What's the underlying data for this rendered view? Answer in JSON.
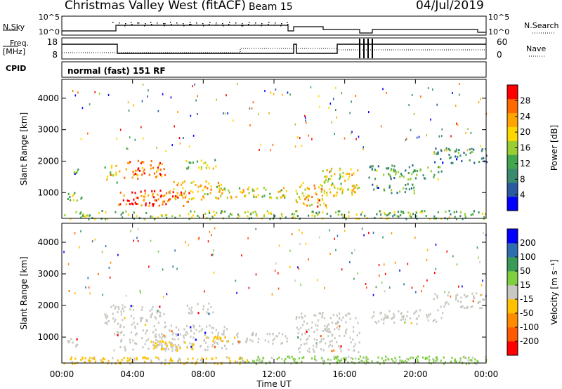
{
  "header": {
    "station": "Christmas Valley West (fitACF)",
    "beam": "Beam 15",
    "date": "04/Jul/2019"
  },
  "top_panels": {
    "nsky_label": "N.Sky",
    "nsky_ticks": [
      "10^5",
      "10^0"
    ],
    "nsearch_label": "N.Search",
    "nsearch_ticks": [
      "10^5",
      "10^0"
    ],
    "freq_label": "Freq.",
    "freq_unit": "[MHz]",
    "freq_ticks": [
      "18",
      "8"
    ],
    "nave_label": "Nave",
    "nave_ticks": [
      "60",
      "0"
    ],
    "cpid_label": "CPID",
    "cpid_text": "normal (fast) 151 RF"
  },
  "colors": {
    "power_scale": [
      "#0000ff",
      "#2a5aa0",
      "#3a8a6e",
      "#43a54e",
      "#9acd32",
      "#ffd700",
      "#ffa500",
      "#ff6a00",
      "#ff0000"
    ],
    "velocity_scale": [
      "#ff0000",
      "#ff5a00",
      "#ff8c00",
      "#ffc000",
      "#c8c8c0",
      "#7fcf3f",
      "#3a9a58",
      "#2e6db0",
      "#0000ff"
    ],
    "ground_scatter": "#c8c8c0"
  },
  "chart_data": [
    {
      "type": "heatmap",
      "title": "Power",
      "xlabel": "",
      "ylabel": "Slant Range [km]",
      "x_range_hours": [
        0,
        24
      ],
      "x_ticks": [
        "00:00",
        "04:00",
        "08:00",
        "12:00",
        "16:00",
        "20:00",
        "00:00"
      ],
      "y_range_km": [
        180,
        4600
      ],
      "y_ticks": [
        1000,
        2000,
        3000,
        4000
      ],
      "colorbar": {
        "label": "Power [dB]",
        "ticks": [
          "4",
          "8",
          "12",
          "16",
          "20",
          "24",
          "28"
        ],
        "range": [
          0,
          30
        ]
      },
      "regions": [
        {
          "t0": 0.3,
          "t1": 1.1,
          "r0": 700,
          "r1": 1100,
          "level": 0.45
        },
        {
          "t0": 0.3,
          "t1": 1.0,
          "r0": 1550,
          "r1": 1800,
          "level": 0.3
        },
        {
          "t0": 2.4,
          "t1": 3.3,
          "r0": 1350,
          "r1": 1900,
          "level": 0.6
        },
        {
          "t0": 2.9,
          "t1": 7.2,
          "r0": 600,
          "r1": 1100,
          "level": 0.9
        },
        {
          "t0": 3.5,
          "t1": 5.8,
          "r0": 1450,
          "r1": 2050,
          "level": 0.8
        },
        {
          "t0": 6.0,
          "t1": 9.5,
          "r0": 800,
          "r1": 1400,
          "level": 0.65
        },
        {
          "t0": 7.0,
          "t1": 8.7,
          "r0": 1750,
          "r1": 2100,
          "level": 0.5
        },
        {
          "t0": 9.5,
          "t1": 12.7,
          "r0": 800,
          "r1": 1200,
          "level": 0.55
        },
        {
          "t0": 13.2,
          "t1": 15.0,
          "r0": 550,
          "r1": 1350,
          "level": 0.7
        },
        {
          "t0": 14.5,
          "t1": 16.8,
          "r0": 850,
          "r1": 1800,
          "level": 0.62
        },
        {
          "t0": 17.3,
          "t1": 21.5,
          "r0": 1450,
          "r1": 1900,
          "level": 0.35
        },
        {
          "t0": 17.5,
          "t1": 20.0,
          "r0": 1000,
          "r1": 1300,
          "level": 0.3
        },
        {
          "t0": 21.0,
          "t1": 24.0,
          "r0": 1950,
          "r1": 2450,
          "level": 0.3
        },
        {
          "t0": 0.0,
          "t1": 24.0,
          "r0": 180,
          "r1": 450,
          "level": 0.45
        }
      ]
    },
    {
      "type": "heatmap",
      "title": "Velocity",
      "xlabel": "Time UT",
      "ylabel": "Slant Range [km]",
      "x_range_hours": [
        0,
        24
      ],
      "x_ticks": [
        "00:00",
        "04:00",
        "08:00",
        "12:00",
        "16:00",
        "20:00",
        "00:00"
      ],
      "y_range_km": [
        180,
        4600
      ],
      "y_ticks": [
        1000,
        2000,
        3000,
        4000
      ],
      "colorbar": {
        "label": "Velocity [m s⁻¹]",
        "ticks": [
          "200",
          "100",
          "50",
          "15",
          "-15",
          "-50",
          "-100",
          "-200"
        ],
        "range": [
          -250,
          250
        ]
      },
      "ground_scatter_regions": [
        {
          "t0": 0.3,
          "t1": 1.1,
          "r0": 700,
          "r1": 1100
        },
        {
          "t0": 2.4,
          "t1": 5.8,
          "r0": 1350,
          "r1": 2050
        },
        {
          "t0": 2.9,
          "t1": 9.5,
          "r0": 600,
          "r1": 1400
        },
        {
          "t0": 7.0,
          "t1": 8.7,
          "r0": 1750,
          "r1": 2100
        },
        {
          "t0": 9.5,
          "t1": 12.7,
          "r0": 800,
          "r1": 1200
        },
        {
          "t0": 13.2,
          "t1": 16.8,
          "r0": 550,
          "r1": 1800
        },
        {
          "t0": 17.3,
          "t1": 21.5,
          "r0": 1450,
          "r1": 1900
        },
        {
          "t0": 21.0,
          "t1": 24.0,
          "r0": 1950,
          "r1": 2450
        }
      ],
      "velocity_regions": [
        {
          "t0": 0.0,
          "t1": 10.5,
          "r0": 180,
          "r1": 400,
          "v": -40
        },
        {
          "t0": 10.0,
          "t1": 24.0,
          "r0": 180,
          "r1": 420,
          "v": 45
        },
        {
          "t0": 5.0,
          "t1": 7.5,
          "r0": 600,
          "r1": 900,
          "v": -35
        },
        {
          "t0": 8.5,
          "t1": 9.8,
          "r0": 850,
          "r1": 1050,
          "v": -60
        }
      ]
    }
  ]
}
